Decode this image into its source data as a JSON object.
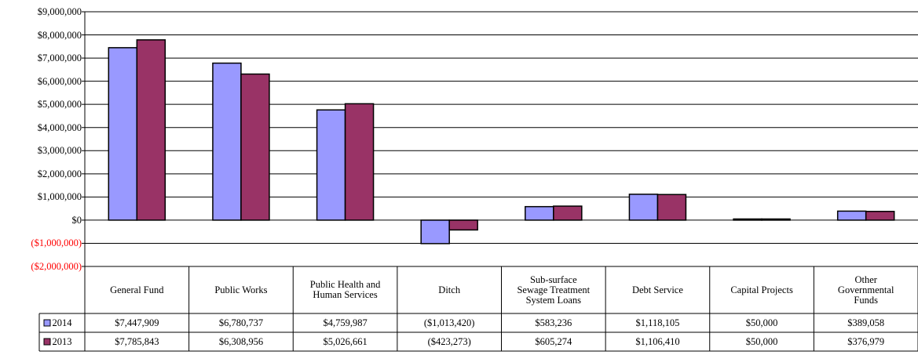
{
  "chart_data": {
    "type": "bar",
    "categories": [
      "General Fund",
      "Public Works",
      "Public Health and Human Services",
      "Ditch",
      "Sub-surface Sewage Treatment System Loans",
      "Debt Service",
      "Capital Projects",
      "Other Governmental Funds"
    ],
    "series": [
      {
        "name": "2014",
        "color": "#9999ff",
        "values": [
          7447909,
          6780737,
          4759987,
          -1013420,
          583236,
          1118105,
          50000,
          389058
        ],
        "value_labels": [
          "$7,447,909",
          "$6,780,737",
          "$4,759,987",
          "($1,013,420)",
          "$583,236",
          "$1,118,105",
          "$50,000",
          "$389,058"
        ]
      },
      {
        "name": "2013",
        "color": "#993366",
        "values": [
          7785843,
          6308956,
          5026661,
          -423273,
          605274,
          1106410,
          50000,
          376979
        ],
        "value_labels": [
          "$7,785,843",
          "$6,308,956",
          "$5,026,661",
          "($423,273)",
          "$605,274",
          "$1,106,410",
          "$50,000",
          "$376,979"
        ]
      }
    ],
    "ylim": [
      -2000000,
      9000000
    ],
    "yticks": [
      {
        "value": -2000000,
        "label": "($2,000,000)"
      },
      {
        "value": -1000000,
        "label": "($1,000,000)"
      },
      {
        "value": 0,
        "label": "$0"
      },
      {
        "value": 1000000,
        "label": "$1,000,000"
      },
      {
        "value": 2000000,
        "label": "$2,000,000"
      },
      {
        "value": 3000000,
        "label": "$3,000,000"
      },
      {
        "value": 4000000,
        "label": "$4,000,000"
      },
      {
        "value": 5000000,
        "label": "$5,000,000"
      },
      {
        "value": 6000000,
        "label": "$6,000,000"
      },
      {
        "value": 7000000,
        "label": "$7,000,000"
      },
      {
        "value": 8000000,
        "label": "$8,000,000"
      },
      {
        "value": 9000000,
        "label": "$9,000,000"
      }
    ],
    "grid": true,
    "negative_tick_color": "#ff0000",
    "data_table": true
  }
}
